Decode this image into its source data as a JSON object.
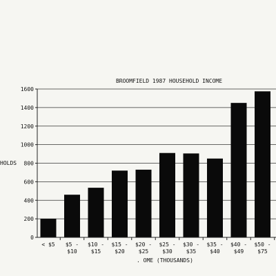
{
  "chart_data": {
    "type": "bar",
    "title": "BROOMFIELD 1987 HOUSEHOLD INCOME",
    "xlabel": ". OME (THOUSANDS)",
    "ylabel": "HOLDS",
    "categories": [
      [
        "< $5"
      ],
      [
        "$5 -",
        "$10"
      ],
      [
        "$10 -",
        "$15"
      ],
      [
        "$15 -",
        "$20"
      ],
      [
        "$20 -",
        "$25"
      ],
      [
        "$25 -",
        "$30"
      ],
      [
        "$30 -",
        "$35"
      ],
      [
        "$35 -",
        "$40"
      ],
      [
        "$40 -",
        "$49"
      ],
      [
        "$50 -",
        "$75"
      ]
    ],
    "values": [
      200,
      460,
      535,
      720,
      730,
      910,
      905,
      850,
      1450,
      1575
    ],
    "yticks": [
      "0",
      "200",
      "400",
      "600",
      "800",
      "1000",
      "1200",
      "1400",
      "1600"
    ],
    "ylim": [
      0,
      1600
    ],
    "grid": true,
    "bar_color": "#0a0a0a"
  }
}
